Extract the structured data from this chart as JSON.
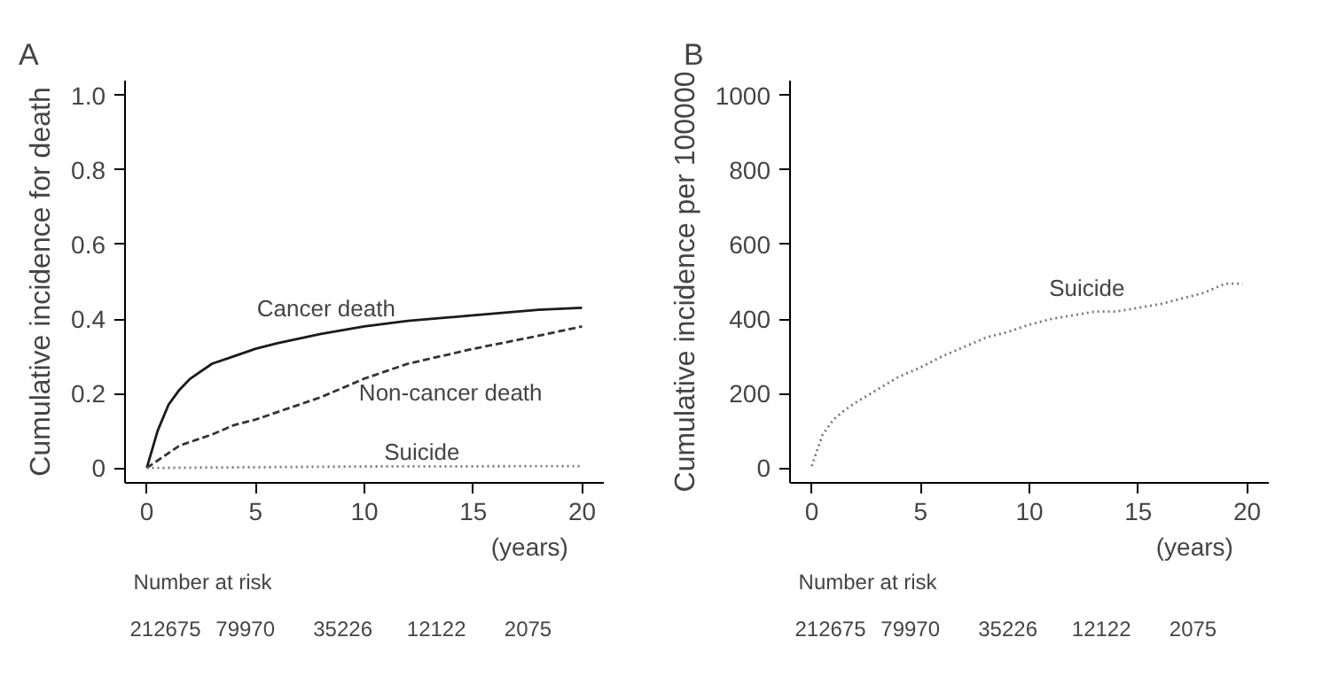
{
  "chart_data": [
    {
      "type": "line",
      "title": "A",
      "ylabel": "Cumulative incidence for death",
      "xlabel": "(years)",
      "xlim": [
        -1,
        21
      ],
      "ylim": [
        -0.04,
        1.04
      ],
      "xticks": [
        0,
        5,
        10,
        15,
        20
      ],
      "yticks": [
        {
          "value": 0,
          "label": "0"
        },
        {
          "value": 0.2,
          "label": "0.2"
        },
        {
          "value": 0.4,
          "label": "0.4"
        },
        {
          "value": 0.6,
          "label": "0.6"
        },
        {
          "value": 0.8,
          "label": "0.8"
        },
        {
          "value": 1.0,
          "label": "1.0"
        }
      ],
      "grid": false,
      "series": [
        {
          "name": "Cancer death",
          "color": "#1a1a1a",
          "line_style": "solid",
          "x": [
            0,
            0.5,
            1,
            1.5,
            2,
            3,
            4,
            5,
            6,
            8,
            10,
            12,
            15,
            18,
            20
          ],
          "values": [
            0,
            0.1,
            0.17,
            0.21,
            0.24,
            0.28,
            0.3,
            0.32,
            0.335,
            0.36,
            0.38,
            0.395,
            0.41,
            0.425,
            0.43
          ]
        },
        {
          "name": "Non-cancer death",
          "color": "#333333",
          "line_style": "dashed",
          "x": [
            0,
            0.5,
            1,
            1.5,
            2,
            3,
            4,
            5,
            6,
            8,
            10,
            12,
            15,
            18,
            20
          ],
          "values": [
            0,
            0.02,
            0.04,
            0.06,
            0.07,
            0.09,
            0.115,
            0.13,
            0.15,
            0.19,
            0.24,
            0.28,
            0.32,
            0.355,
            0.38
          ]
        },
        {
          "name": "Suicide",
          "color": "#777777",
          "line_style": "dotted",
          "x": [
            0,
            5,
            10,
            20
          ],
          "values": [
            0,
            0.002,
            0.004,
            0.005
          ]
        }
      ],
      "annotations": [
        "Number at risk",
        "212675",
        "79970",
        "35226",
        "12122",
        "2075"
      ]
    },
    {
      "type": "line",
      "title": "B",
      "ylabel": "Cumulative incidence per 100000",
      "xlabel": "(years)",
      "xlim": [
        -1,
        21
      ],
      "ylim": [
        -40,
        1040
      ],
      "xticks": [
        0,
        5,
        10,
        15,
        20
      ],
      "yticks": [
        0,
        200,
        400,
        600,
        800,
        1000
      ],
      "grid": false,
      "series": [
        {
          "name": "Suicide",
          "color": "#777777",
          "line_style": "dotted",
          "x": [
            0,
            0.2,
            0.5,
            1,
            1.5,
            2,
            3,
            4,
            5,
            6,
            7,
            8,
            9,
            10,
            11,
            12,
            13,
            14,
            15,
            16,
            17,
            18,
            19,
            19.8
          ],
          "values": [
            5,
            40,
            90,
            130,
            155,
            175,
            210,
            245,
            270,
            300,
            325,
            350,
            365,
            385,
            400,
            410,
            420,
            420,
            430,
            440,
            455,
            470,
            495,
            495
          ]
        }
      ],
      "annotations": [
        "Number at risk",
        "212675",
        "79970",
        "35226",
        "12122",
        "2075"
      ]
    }
  ]
}
